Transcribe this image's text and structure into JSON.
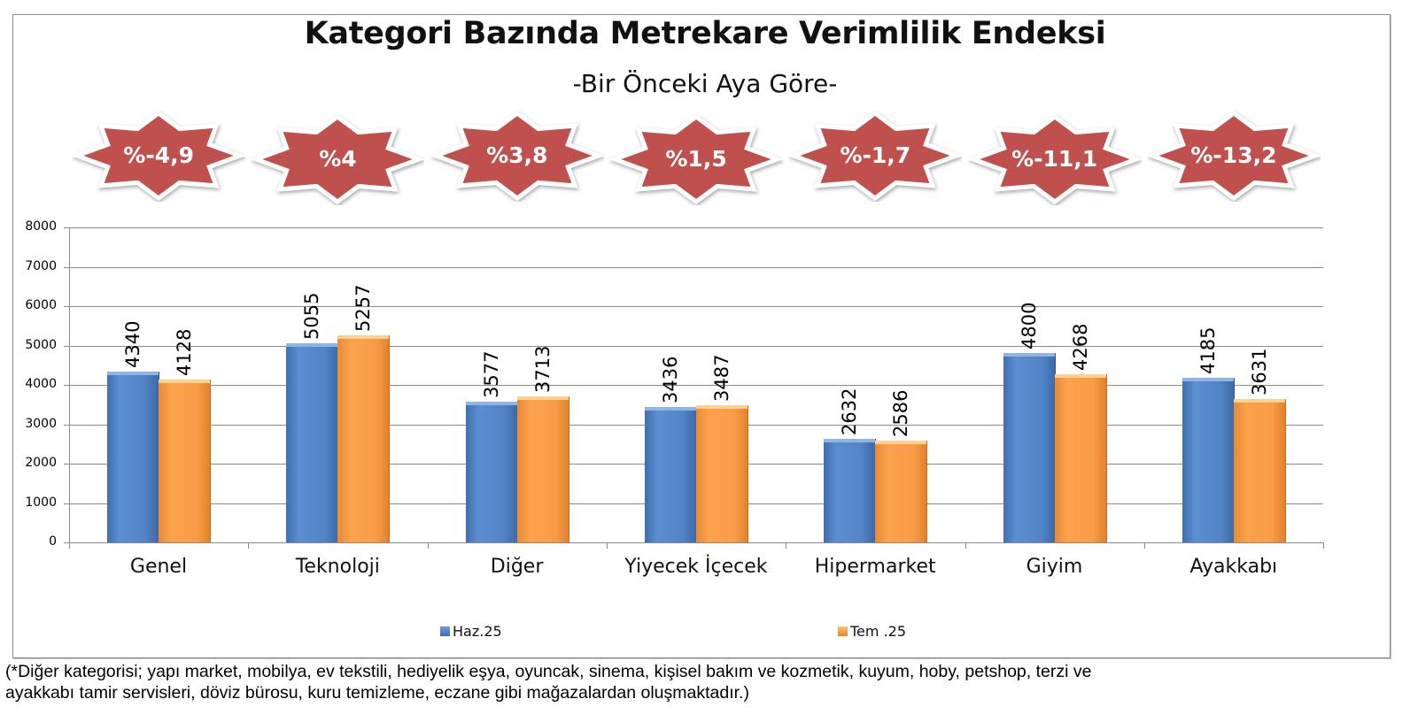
{
  "title": "Kategori Bazında Metrekare Verimlilik Endeksi",
  "subtitle": "-Bir Önceki Aya Göre-",
  "change_badges": [
    {
      "category": "Genel",
      "label": "%-4,9"
    },
    {
      "category": "Teknoloji",
      "label": "%4"
    },
    {
      "category": "Diğer",
      "label": "%3,8"
    },
    {
      "category": "Yiyecek İçecek",
      "label": "%1,5"
    },
    {
      "category": "Hipermarket",
      "label": "%-1,7"
    },
    {
      "category": "Giyim",
      "label": "%-11,1"
    },
    {
      "category": "Ayakkabı",
      "label": "%-13,2"
    }
  ],
  "colors": {
    "badge": "#c0504d",
    "series_haz": "#4f81bd",
    "series_tem": "#f79646",
    "grid": "#8a8a8a"
  },
  "y_ticks": [
    "0",
    "1000",
    "2000",
    "3000",
    "4000",
    "5000",
    "6000",
    "7000",
    "8000"
  ],
  "legend": {
    "haz": "Haz.25",
    "tem": "Tem .25"
  },
  "footnote_line1": "(*Diğer kategorisi; yapı market, mobilya, ev tekstili, hediyelik eşya, oyuncak, sinema, kişisel bakım ve kozmetik, kuyum, hoby,  petshop, terzi ve",
  "footnote_line2": "ayakkabı tamir servisleri, döviz bürosu, kuru temizleme, eczane gibi mağazalardan oluşmaktadır.)",
  "chart_data": {
    "type": "bar",
    "title": "Kategori Bazında Metrekare Verimlilik Endeksi",
    "subtitle": "-Bir Önceki Aya Göre-",
    "categories": [
      "Genel",
      "Teknoloji",
      "Diğer",
      "Yiyecek İçecek",
      "Hipermarket",
      "Giyim",
      "Ayakkabı"
    ],
    "series": [
      {
        "name": "Haz.25",
        "color": "#4f81bd",
        "values": [
          4340,
          5055,
          3577,
          3436,
          2632,
          4800,
          4185
        ]
      },
      {
        "name": "Tem .25",
        "color": "#f79646",
        "values": [
          4128,
          5257,
          3713,
          3487,
          2586,
          4268,
          3631
        ]
      }
    ],
    "annotations": [
      "%-4,9",
      "%4",
      "%3,8",
      "%1,5",
      "%-1,7",
      "%-11,1",
      "%-13,2"
    ],
    "xlabel": "",
    "ylabel": "",
    "ylim": [
      0,
      8000
    ],
    "y_tick_step": 1000,
    "grid": true,
    "data_labels": "vertical, above bars",
    "legend_position": "bottom"
  }
}
